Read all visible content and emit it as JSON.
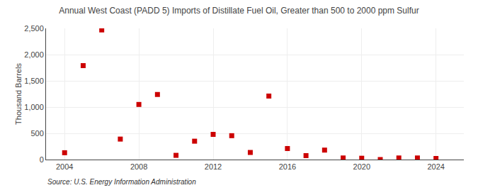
{
  "chart_data": {
    "type": "scatter",
    "title": "Annual West Coast (PADD 5) Imports of Distillate Fuel Oil, Greater than 500 to 2000 ppm Sulfur",
    "ylabel": "Thousand Barrels",
    "annotations": [
      "Source: U.S. Energy Information Administration"
    ],
    "x": [
      2004,
      2005,
      2006,
      2007,
      2008,
      2009,
      2010,
      2011,
      2012,
      2013,
      2014,
      2015,
      2016,
      2017,
      2018,
      2019,
      2020,
      2021,
      2022,
      2023,
      2024
    ],
    "values": [
      130,
      1790,
      2470,
      390,
      1050,
      1240,
      80,
      350,
      480,
      455,
      135,
      1210,
      210,
      75,
      180,
      30,
      25,
      0,
      30,
      30,
      20
    ],
    "color": "#cc0000",
    "marker": "square",
    "xlim": [
      2003.0,
      2025.5
    ],
    "xticks": [
      2004,
      2008,
      2012,
      2016,
      2020,
      2024
    ],
    "ylim": [
      0,
      2500
    ],
    "yticks": [
      0,
      500,
      {
        "value": 1000,
        "label": "1,000"
      },
      {
        "value": 1500,
        "label": "1,500"
      },
      {
        "value": 2000,
        "label": "2,000"
      },
      {
        "value": 2500,
        "label": "2,500"
      }
    ],
    "grid": true
  }
}
